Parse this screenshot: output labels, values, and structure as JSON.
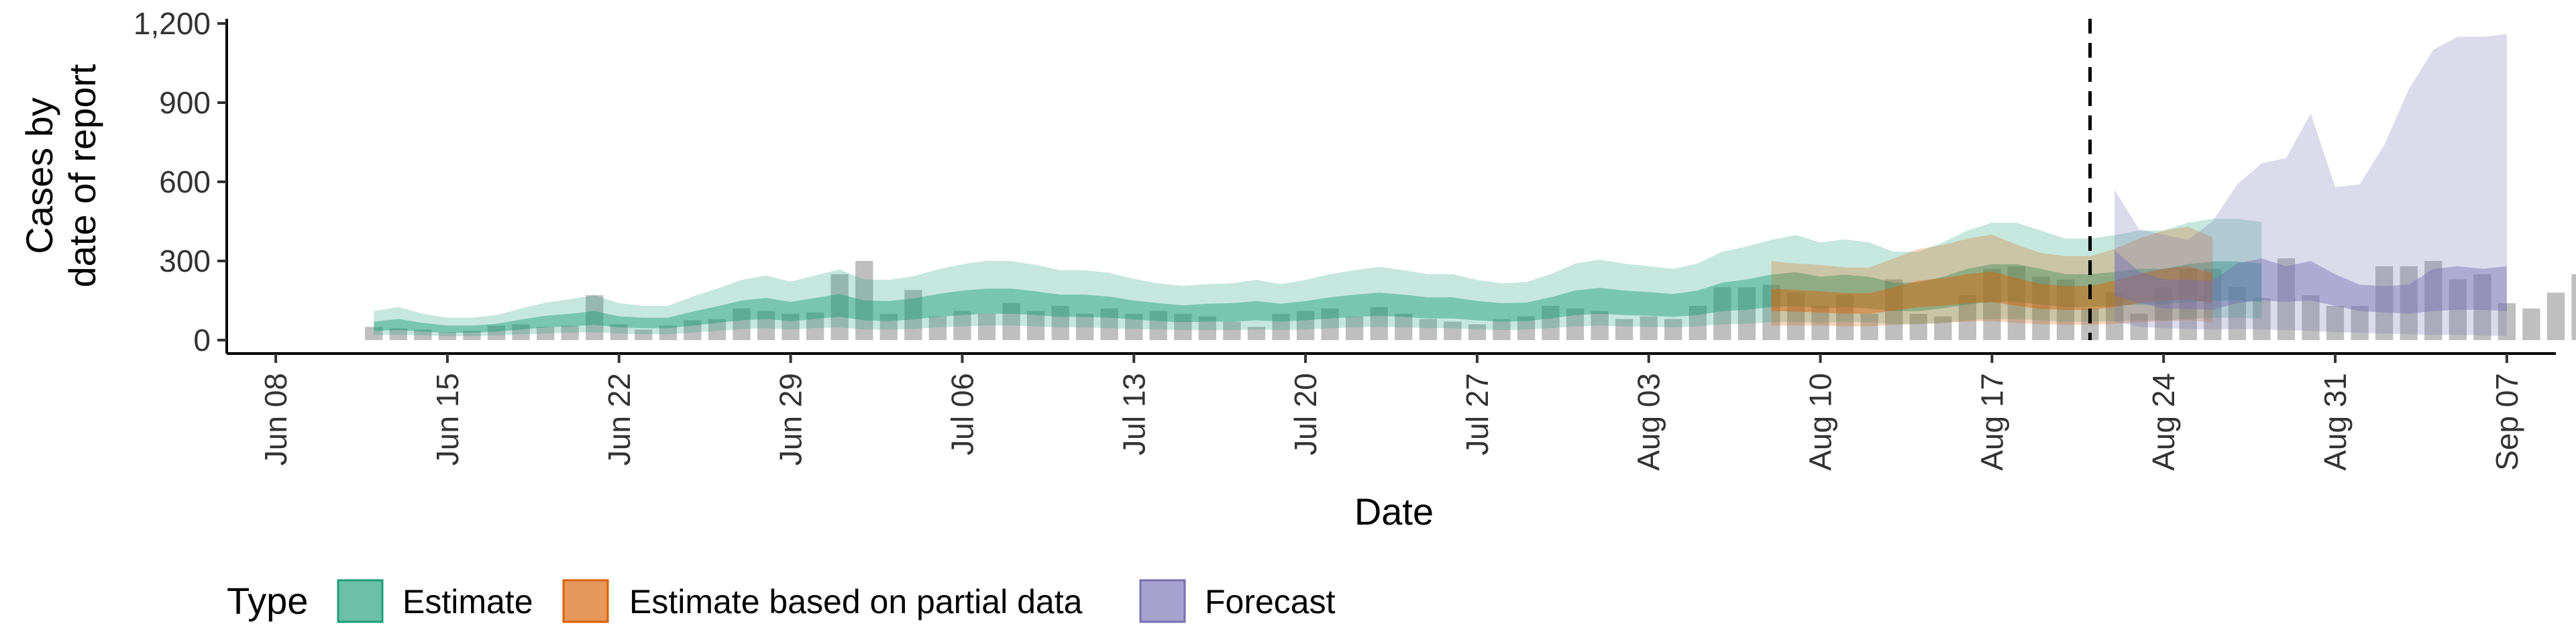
{
  "chart_data": {
    "type": "area",
    "xlabel": "Date",
    "ylabel_lines": [
      "Cases by",
      "date of report"
    ],
    "ylim": [
      0,
      1200
    ],
    "y_ticks": [
      0,
      300,
      600,
      900,
      1200
    ],
    "y_tick_labels": [
      "0",
      "300",
      "600",
      "900",
      "1,200"
    ],
    "x_range": [
      "2020-06-06",
      "2020-09-09"
    ],
    "x_ticks": [
      "2020-06-08",
      "2020-06-15",
      "2020-06-22",
      "2020-06-29",
      "2020-07-06",
      "2020-07-13",
      "2020-07-20",
      "2020-07-27",
      "2020-08-03",
      "2020-08-10",
      "2020-08-17",
      "2020-08-24",
      "2020-08-31",
      "2020-09-07"
    ],
    "x_tick_labels": [
      "Jun 08",
      "Jun 15",
      "Jun 22",
      "Jun 29",
      "Jul 06",
      "Jul 13",
      "Jul 20",
      "Jul 27",
      "Aug 03",
      "Aug 10",
      "Aug 17",
      "Aug 24",
      "Aug 31",
      "Sep 07"
    ],
    "forecast_line_date": "2020-08-21",
    "colors": {
      "estimate": "#1b9e77",
      "partial": "#d95f02",
      "forecast": "#7570b3",
      "bars": "#aaaaaa"
    },
    "reported_cases": {
      "start_date": "2020-06-12",
      "values": [
        50,
        45,
        40,
        30,
        35,
        55,
        60,
        50,
        55,
        170,
        60,
        40,
        55,
        75,
        80,
        120,
        110,
        100,
        105,
        250,
        300,
        100,
        190,
        90,
        110,
        100,
        140,
        110,
        130,
        100,
        120,
        100,
        110,
        100,
        90,
        70,
        50,
        100,
        110,
        120,
        90,
        125,
        100,
        80,
        70,
        60,
        80,
        90,
        130,
        120,
        110,
        80,
        90,
        80,
        130,
        200,
        200,
        210,
        180,
        130,
        170,
        100,
        230,
        100,
        90,
        170,
        270,
        280,
        240,
        230,
        120,
        180,
        100,
        200,
        270,
        270,
        200,
        160,
        310,
        170,
        130,
        130,
        280,
        280,
        300,
        230,
        250,
        140,
        120,
        180,
        250,
        170,
        230,
        230
      ]
    },
    "series": [
      {
        "name": "Estimate",
        "start_date": "2020-06-12",
        "lower90": [
          20,
          20,
          18,
          15,
          15,
          18,
          22,
          25,
          28,
          30,
          25,
          22,
          22,
          28,
          35,
          42,
          45,
          40,
          45,
          48,
          40,
          40,
          42,
          48,
          52,
          55,
          55,
          52,
          48,
          48,
          45,
          42,
          40,
          38,
          38,
          38,
          40,
          38,
          40,
          45,
          48,
          50,
          48,
          45,
          45,
          40,
          38,
          40,
          45,
          52,
          55,
          52,
          50,
          48,
          52,
          60,
          62,
          68,
          70,
          65,
          70,
          68,
          60,
          60,
          65,
          75,
          80,
          80,
          75,
          70,
          70,
          72,
          75,
          75,
          80,
          85,
          85,
          80
        ],
        "lower50": [
          35,
          38,
          32,
          28,
          28,
          32,
          40,
          48,
          52,
          58,
          48,
          45,
          45,
          55,
          65,
          75,
          80,
          72,
          80,
          88,
          75,
          72,
          78,
          88,
          95,
          100,
          100,
          95,
          88,
          88,
          85,
          78,
          72,
          68,
          70,
          70,
          75,
          70,
          75,
          82,
          88,
          92,
          88,
          82,
          82,
          75,
          70,
          72,
          82,
          95,
          100,
          95,
          92,
          88,
          95,
          110,
          115,
          125,
          130,
          120,
          125,
          120,
          110,
          110,
          120,
          135,
          145,
          145,
          135,
          125,
          125,
          130,
          135,
          135,
          145,
          150,
          150,
          145
        ],
        "upper50": [
          70,
          80,
          65,
          55,
          55,
          62,
          78,
          92,
          100,
          110,
          90,
          85,
          85,
          108,
          128,
          150,
          160,
          145,
          160,
          175,
          150,
          148,
          158,
          175,
          188,
          195,
          195,
          185,
          172,
          172,
          165,
          150,
          140,
          132,
          138,
          140,
          148,
          138,
          148,
          162,
          172,
          180,
          172,
          162,
          162,
          148,
          140,
          142,
          162,
          188,
          198,
          188,
          182,
          175,
          188,
          218,
          230,
          248,
          258,
          240,
          248,
          240,
          218,
          218,
          240,
          270,
          288,
          288,
          270,
          250,
          250,
          258,
          270,
          270,
          288,
          298,
          298,
          290
        ],
        "upper90": [
          110,
          125,
          100,
          85,
          85,
          95,
          120,
          142,
          155,
          170,
          140,
          130,
          130,
          165,
          195,
          228,
          245,
          222,
          245,
          268,
          230,
          228,
          242,
          268,
          288,
          300,
          300,
          285,
          265,
          265,
          255,
          232,
          215,
          205,
          212,
          215,
          228,
          212,
          228,
          250,
          265,
          278,
          265,
          250,
          250,
          228,
          215,
          220,
          250,
          290,
          305,
          290,
          280,
          270,
          290,
          335,
          355,
          380,
          398,
          370,
          382,
          370,
          335,
          335,
          370,
          415,
          445,
          445,
          415,
          385,
          385,
          398,
          415,
          415,
          445,
          460,
          460,
          448
        ]
      },
      {
        "name": "Estimate based on partial data",
        "start_date": "2020-08-08",
        "lower90": [
          55,
          55,
          55,
          52,
          52,
          58,
          62,
          65,
          70,
          72,
          65,
          60,
          58,
          58,
          62,
          68,
          72,
          75,
          68
        ],
        "lower50": [
          110,
          108,
          105,
          100,
          100,
          112,
          125,
          130,
          140,
          145,
          130,
          118,
          115,
          115,
          125,
          140,
          150,
          155,
          140
        ],
        "upper50": [
          195,
          190,
          185,
          178,
          178,
          200,
          225,
          235,
          250,
          260,
          235,
          212,
          205,
          205,
          225,
          250,
          270,
          280,
          255
        ],
        "upper90": [
          300,
          290,
          285,
          275,
          275,
          310,
          345,
          360,
          385,
          400,
          362,
          330,
          318,
          318,
          345,
          385,
          415,
          430,
          390
        ]
      },
      {
        "name": "Forecast",
        "start_date": "2020-08-22",
        "lower90": [
          70,
          50,
          45,
          42,
          40,
          42,
          40,
          38,
          35,
          30,
          28,
          25,
          22,
          20,
          20,
          18,
          15
        ],
        "lower50": [
          170,
          140,
          120,
          118,
          115,
          140,
          150,
          145,
          150,
          130,
          110,
          105,
          100,
          110,
          115,
          115,
          110
        ],
        "upper50": [
          340,
          260,
          230,
          228,
          225,
          290,
          310,
          280,
          300,
          250,
          210,
          205,
          210,
          270,
          280,
          270,
          280
        ],
        "upper90": [
          570,
          420,
          400,
          380,
          450,
          590,
          670,
          690,
          860,
          580,
          590,
          740,
          950,
          1100,
          1150,
          1150,
          1160
        ]
      }
    ],
    "legend": {
      "title": "Type",
      "position": "bottom",
      "items": [
        "Estimate",
        "Estimate based on partial data",
        "Forecast"
      ]
    }
  }
}
